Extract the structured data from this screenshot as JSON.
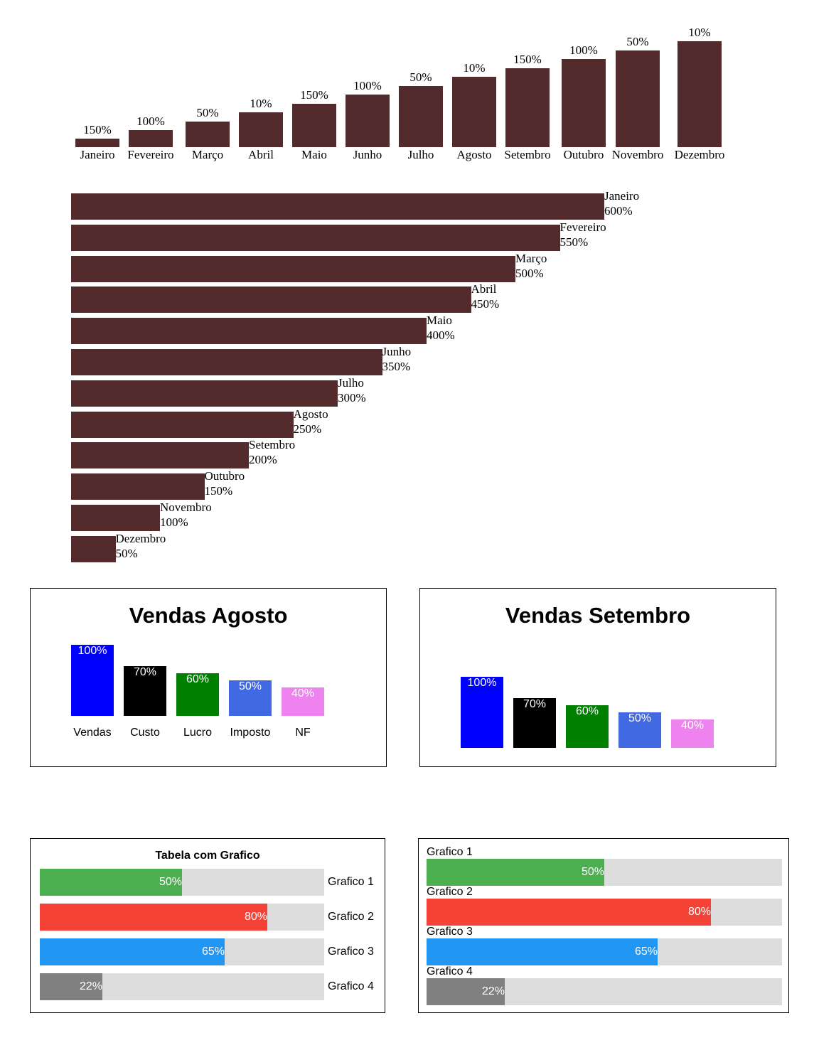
{
  "chart_data": [
    {
      "type": "bar",
      "orientation": "vertical",
      "categories": [
        "Janeiro",
        "Fevereiro",
        "Março",
        "Abril",
        "Maio",
        "Junho",
        "Julho",
        "Agosto",
        "Setembro",
        "Outubro",
        "Novembro",
        "Dezembro"
      ],
      "labels": [
        "150%",
        "100%",
        "50%",
        "10%",
        "150%",
        "100%",
        "50%",
        "10%",
        "150%",
        "100%",
        "50%",
        "10%"
      ],
      "values": [
        12,
        24,
        36,
        49,
        61,
        74,
        86,
        99,
        111,
        124,
        136,
        149
      ],
      "color": "#532b2c"
    },
    {
      "type": "bar",
      "orientation": "horizontal",
      "categories": [
        "Janeiro",
        "Fevereiro",
        "Março",
        "Abril",
        "Maio",
        "Junho",
        "Julho",
        "Agosto",
        "Setembro",
        "Outubro",
        "Novembro",
        "Dezembro"
      ],
      "labels": [
        "600%",
        "550%",
        "500%",
        "450%",
        "400%",
        "350%",
        "300%",
        "250%",
        "200%",
        "150%",
        "100%",
        "50%"
      ],
      "values": [
        600,
        550,
        500,
        450,
        400,
        350,
        300,
        250,
        200,
        150,
        100,
        50
      ],
      "color": "#532b2c"
    },
    {
      "type": "bar",
      "title": "Vendas Agosto",
      "categories": [
        "Vendas",
        "Custo",
        "Lucro",
        "Imposto",
        "NF"
      ],
      "labels": [
        "100%",
        "70%",
        "60%",
        "50%",
        "40%"
      ],
      "values": [
        100,
        70,
        60,
        50,
        40
      ],
      "colors": [
        "#0000ff",
        "#000000",
        "#008000",
        "#4169e1",
        "#ee82ee"
      ]
    },
    {
      "type": "bar",
      "title": "Vendas Setembro",
      "labels": [
        "100%",
        "70%",
        "60%",
        "50%",
        "40%"
      ],
      "values": [
        100,
        70,
        60,
        50,
        40
      ],
      "colors": [
        "#0000ff",
        "#000000",
        "#008000",
        "#4169e1",
        "#ee82ee"
      ]
    },
    {
      "type": "bar",
      "orientation": "horizontal",
      "title": "Tabela com Grafico",
      "categories": [
        "Grafico 1",
        "Grafico 2",
        "Grafico 3",
        "Grafico 4"
      ],
      "labels": [
        "50%",
        "80%",
        "65%",
        "22%"
      ],
      "values": [
        50,
        80,
        65,
        22
      ],
      "colors": [
        "#4caf50",
        "#f44336",
        "#2196f3",
        "#808080"
      ],
      "track_color": "#dddddd"
    },
    {
      "type": "bar",
      "orientation": "horizontal",
      "categories": [
        "Grafico 1",
        "Grafico 2",
        "Grafico 3",
        "Grafico 4"
      ],
      "labels": [
        "50%",
        "80%",
        "65%",
        "22%"
      ],
      "values": [
        50,
        80,
        65,
        22
      ],
      "colors": [
        "#4caf50",
        "#f44336",
        "#2196f3",
        "#808080"
      ],
      "track_color": "#dddddd"
    }
  ]
}
